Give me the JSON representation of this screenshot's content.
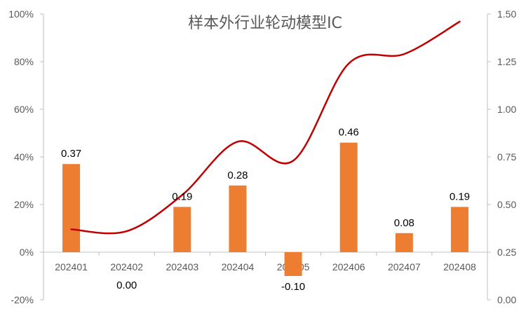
{
  "chart_data": {
    "type": "bar",
    "title": "样本外行业轮动模型IC",
    "categories": [
      "202401",
      "202402",
      "202403",
      "202404",
      "202405",
      "202406",
      "202407",
      "202408"
    ],
    "series": [
      {
        "type": "bar",
        "axis": "left",
        "values": [
          0.37,
          0.0,
          0.19,
          0.28,
          -0.1,
          0.46,
          0.08,
          0.19
        ],
        "labels": [
          "0.37",
          "0.00",
          "0.19",
          "0.28",
          "-0.10",
          "0.46",
          "0.08",
          "0.19"
        ],
        "color": "#ED7D31"
      },
      {
        "type": "line",
        "axis": "right",
        "smooth": true,
        "values": [
          0.37,
          0.36,
          0.55,
          0.83,
          0.73,
          1.24,
          1.29,
          1.46
        ],
        "color": "#C00000"
      }
    ],
    "y_left": {
      "min": -0.2,
      "max": 1.0,
      "step": 0.2,
      "ticks": [
        "-20%",
        "0%",
        "20%",
        "40%",
        "60%",
        "80%",
        "100%"
      ]
    },
    "y_right": {
      "min": 0.0,
      "max": 1.5,
      "step": 0.25,
      "ticks": [
        "0.00",
        "0.25",
        "0.50",
        "0.75",
        "1.00",
        "1.25",
        "1.50"
      ]
    },
    "grid": false,
    "legend": "none"
  }
}
